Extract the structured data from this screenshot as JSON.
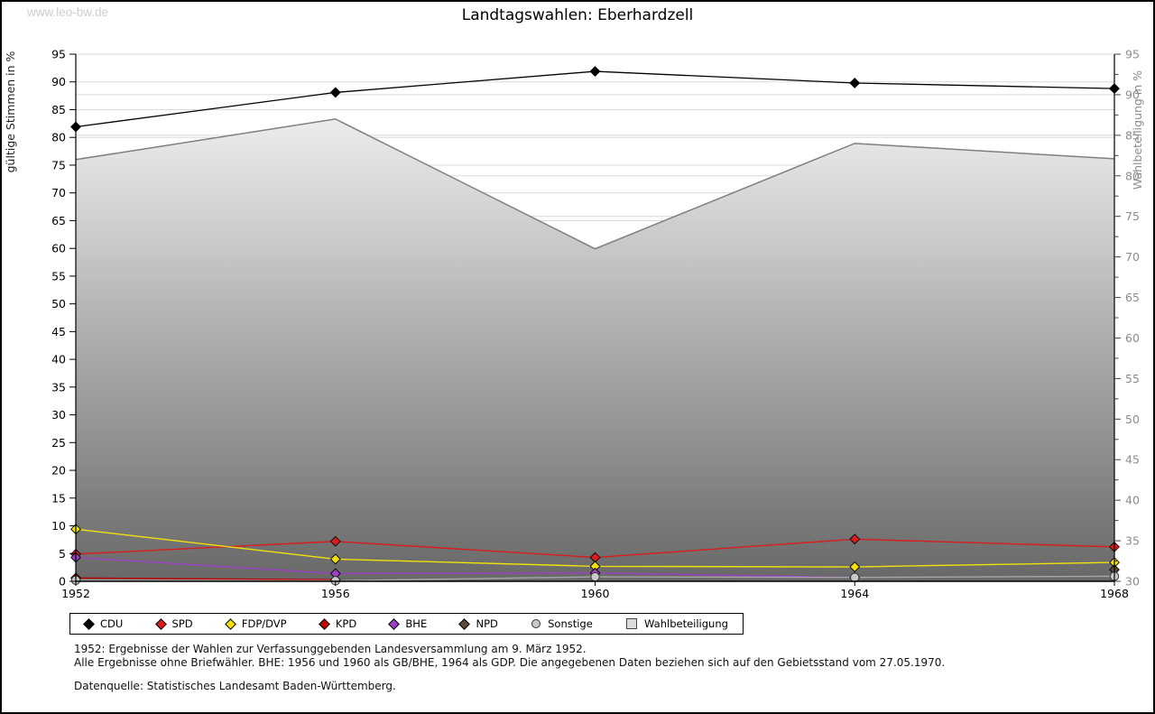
{
  "page": {
    "watermark": "www.leo-bw.de",
    "title": "Landtagswahlen: Eberhardzell"
  },
  "chart_data": {
    "type": "line",
    "title": "Landtagswahlen: Eberhardzell",
    "categories": [
      "1952",
      "1956",
      "1960",
      "1964",
      "1968"
    ],
    "left_axis": {
      "label": "gültige Stimmen in %",
      "min": 0,
      "max": 95,
      "step": 5
    },
    "right_axis": {
      "label": "Wahlbeteiligung in %",
      "min": 30,
      "max": 95,
      "step": 5,
      "minor_step": 2.5
    },
    "grid": true,
    "legend_position": "bottom",
    "colors": {
      "grid": "#d9d9d9",
      "axis": "#000000",
      "right_tick_text": "#8c8c8c",
      "area_stroke": "#7f7f7f",
      "area_fill_top": "#ffffff",
      "area_fill_bottom": "#686868"
    },
    "series": [
      {
        "name": "CDU",
        "axis": "left",
        "marker": "diamond",
        "color": "#000000",
        "values": [
          81.9,
          88.1,
          91.9,
          89.8,
          88.8
        ]
      },
      {
        "name": "SPD",
        "axis": "left",
        "marker": "diamond",
        "color": "#d91c1c",
        "values": [
          4.9,
          7.2,
          4.3,
          7.6,
          6.2
        ]
      },
      {
        "name": "FDP/DVP",
        "axis": "left",
        "marker": "diamond",
        "color": "#f2e20a",
        "values": [
          9.4,
          4.0,
          2.7,
          2.6,
          3.4
        ]
      },
      {
        "name": "KPD",
        "axis": "left",
        "marker": "diamond",
        "color": "#c00000",
        "values": [
          0.6,
          0.3,
          null,
          null,
          null
        ]
      },
      {
        "name": "BHE",
        "axis": "left",
        "marker": "diamond",
        "color": "#9d3fc4",
        "values": [
          4.3,
          1.4,
          1.5,
          0.7,
          null
        ]
      },
      {
        "name": "NPD",
        "axis": "left",
        "marker": "diamond",
        "color": "#5f4a36",
        "values": [
          null,
          null,
          null,
          null,
          2.1
        ]
      },
      {
        "name": "Sonstige",
        "axis": "left",
        "marker": "circle",
        "color": "#c8c8c8",
        "line_color": "#a8a8a8",
        "values": [
          0.2,
          0.1,
          0.8,
          0.7,
          0.9
        ]
      },
      {
        "name": "Wahlbeteiligung",
        "axis": "right",
        "type": "area",
        "color": "#7f7f7f",
        "values": [
          82.0,
          87.0,
          71.0,
          84.0,
          82.1
        ]
      }
    ]
  },
  "footnotes": {
    "line1": "1952: Ergebnisse der Wahlen zur Verfassunggebenden Landesversammlung am 9. März 1952.",
    "line2": "Alle Ergebnisse ohne Briefwähler. BHE: 1956 und 1960 als GB/BHE, 1964 als GDP. Die angegebenen Daten beziehen sich auf den Gebietsstand vom 27.05.1970.",
    "line3": "Datenquelle: Statistisches Landesamt Baden-Württemberg."
  }
}
